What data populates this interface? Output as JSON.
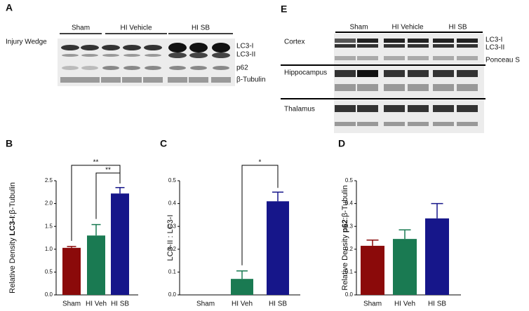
{
  "blots": [
    {
      "letter": "A",
      "title": "Injury Wedge",
      "groups": [
        "Sham",
        "HI Vehicle",
        "HI SB"
      ],
      "bands": [
        "LC3-I",
        "LC3-II",
        "p62",
        "β-Tubulin"
      ]
    },
    {
      "letter": "E",
      "groups": [
        "Sham",
        "HI Vehicle",
        "HI SB"
      ],
      "regions": [
        "Cortex",
        "Hippocampus",
        "Thalamus"
      ],
      "bands": [
        "LC3-I",
        "LC3-II",
        "Ponceau S"
      ]
    }
  ],
  "chart_data": [
    {
      "type": "bar",
      "label": "B",
      "y_label": [
        {
          "text": "Relative Density ",
          "bold": false
        },
        {
          "text": "LC3-I",
          "bold": true
        },
        {
          "text": ":β-Tubulin",
          "bold": false
        }
      ],
      "categories": [
        "Sham",
        "HI Veh",
        "HI SB"
      ],
      "values": [
        1.03,
        1.3,
        2.22
      ],
      "errors": [
        0.03,
        0.24,
        0.13
      ],
      "colors": [
        "#8b0a0a",
        "#1a7a52",
        "#16168a"
      ],
      "ylim": [
        0,
        2.5
      ],
      "yticks": [
        {
          "value": 0,
          "label": "0.0"
        },
        {
          "value": 0.5,
          "label": "0.5"
        },
        {
          "value": 1,
          "label": "1.0"
        },
        {
          "value": 1.5,
          "label": "1.5"
        },
        {
          "value": 2,
          "label": "2.0"
        },
        {
          "value": 2.5,
          "label": "2.5"
        }
      ],
      "annotations": [
        {
          "text": "**",
          "between": [
            "Sham",
            "HI SB"
          ]
        },
        {
          "text": "**",
          "between": [
            "HI Veh",
            "HI SB"
          ]
        }
      ]
    },
    {
      "type": "bar",
      "label": "C",
      "y_label": [
        {
          "text": "LC3-II : LC3-I",
          "bold": false
        }
      ],
      "categories": [
        "Sham",
        "HI Veh",
        "HI SB"
      ],
      "values": [
        0,
        0.07,
        0.41
      ],
      "errors": [
        0,
        0.035,
        0.04
      ],
      "colors": [
        "#8b0a0a",
        "#1a7a52",
        "#16168a"
      ],
      "ylim": [
        0,
        0.5
      ],
      "yticks": [
        {
          "value": 0,
          "label": "0.0"
        },
        0.1,
        0.2,
        0.3,
        0.4,
        0.5
      ],
      "annotations": [
        {
          "text": "*",
          "between": [
            "HI Veh",
            "HI SB"
          ]
        }
      ]
    },
    {
      "type": "bar",
      "label": "D",
      "y_label": [
        {
          "text": "Relative Density ",
          "bold": false
        },
        {
          "text": "p62",
          "bold": true
        },
        {
          "text": ":β-Tubulin",
          "bold": false
        }
      ],
      "categories": [
        "Sham",
        "HI Veh",
        "HI SB"
      ],
      "values": [
        0.215,
        0.245,
        0.335
      ],
      "errors": [
        0.025,
        0.04,
        0.065
      ],
      "colors": [
        "#8b0a0a",
        "#1a7a52",
        "#16168a"
      ],
      "ylim": [
        0,
        0.5
      ],
      "yticks": [
        {
          "value": 0,
          "label": "0.0"
        },
        0.1,
        0.2,
        0.3,
        0.4,
        0.5
      ],
      "annotations": []
    }
  ]
}
